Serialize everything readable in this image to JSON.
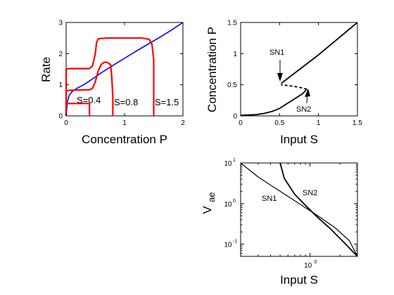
{
  "chart_data": [
    {
      "type": "line",
      "xlabel": "Concentration P",
      "ylabel": "Rate",
      "xlim": [
        0,
        2
      ],
      "ylim": [
        0,
        3
      ],
      "xticks": [
        "0",
        "1",
        "2"
      ],
      "yticks": [
        "0",
        "1",
        "2",
        "3"
      ],
      "grid": false,
      "annotations": [
        "S=0.4",
        "S=0.8",
        "S=1.5"
      ],
      "series": [
        {
          "color": "#0000ff",
          "x": [
            0,
            0.02,
            0.05,
            0.1,
            0.2,
            0.3,
            0.4,
            0.5,
            0.6,
            0.8,
            1.0,
            1.2,
            1.4,
            1.6,
            1.8,
            2.0
          ],
          "y": [
            0,
            0.45,
            0.65,
            0.78,
            0.9,
            1.0,
            1.12,
            1.25,
            1.38,
            1.62,
            1.85,
            2.08,
            2.3,
            2.52,
            2.75,
            3.0
          ]
        },
        {
          "color": "#ff0000",
          "x": [
            0,
            0.0,
            0.03,
            0.3,
            0.38,
            0.4,
            0.4
          ],
          "y": [
            0,
            0.4,
            0.4,
            0.4,
            0.4,
            0.38,
            0
          ]
        },
        {
          "color": "#ff0000",
          "x": [
            0,
            0.0,
            0.05,
            0.4,
            0.45,
            0.5,
            0.55,
            0.6,
            0.65,
            0.7,
            0.76,
            0.78,
            0.8,
            0.8
          ],
          "y": [
            0,
            0.8,
            0.82,
            0.84,
            0.88,
            1.1,
            1.45,
            1.65,
            1.72,
            1.72,
            1.65,
            1.3,
            0.6,
            0
          ]
        },
        {
          "color": "#ff0000",
          "x": [
            0,
            0.0,
            0.05,
            0.3,
            0.4,
            0.45,
            0.5,
            0.52,
            0.55,
            0.7,
            1.3,
            1.42,
            1.47,
            1.5,
            1.5
          ],
          "y": [
            0,
            1.5,
            1.52,
            1.52,
            1.52,
            1.6,
            2.0,
            2.35,
            2.48,
            2.5,
            2.5,
            2.46,
            2.3,
            1.8,
            0
          ]
        }
      ]
    },
    {
      "type": "line",
      "xlabel": "Input S",
      "ylabel": "Concentration P",
      "xlim": [
        0,
        1.5
      ],
      "ylim": [
        0,
        1.5
      ],
      "xticks": [
        "0",
        "0.5",
        "1",
        "1.5"
      ],
      "yticks": [
        "0",
        "0.5",
        "1",
        "1.5"
      ],
      "grid": false,
      "annotations": [
        "SN1",
        "SN2"
      ],
      "series": [
        {
          "style": "solid",
          "color": "#000000",
          "x": [
            0,
            0.2,
            0.3,
            0.4,
            0.5,
            0.6,
            0.7,
            0.8,
            0.85
          ],
          "y": [
            0.01,
            0.02,
            0.04,
            0.07,
            0.12,
            0.2,
            0.28,
            0.36,
            0.43
          ]
        },
        {
          "style": "dashed",
          "color": "#000000",
          "x": [
            0.85,
            0.75,
            0.65,
            0.52
          ],
          "y": [
            0.43,
            0.46,
            0.48,
            0.5
          ]
        },
        {
          "style": "solid",
          "color": "#000000",
          "x": [
            0.52,
            1.0,
            1.5
          ],
          "y": [
            0.52,
            0.98,
            1.5
          ]
        }
      ]
    },
    {
      "type": "line",
      "xlabel": "Input S",
      "ylabel": "V",
      "ylabel_subscript": "ae",
      "xscale": "log",
      "yscale": "log",
      "xlim": [
        0.2,
        3
      ],
      "ylim": [
        0.05,
        10
      ],
      "xticks_major": [
        "10",
        "0"
      ],
      "yticks_major": [
        {
          "base": "10",
          "exp": "1"
        },
        {
          "base": "10",
          "exp": "0"
        },
        {
          "base": "10",
          "exp": "-1"
        }
      ],
      "grid": false,
      "annotations": [
        "SN1",
        "SN2"
      ],
      "series": [
        {
          "name": "SN1",
          "color": "#000000",
          "x": [
            0.2,
            0.3,
            0.5,
            0.8,
            1.2,
            1.8,
            2.5,
            3.0
          ],
          "y": [
            10,
            4.5,
            2.0,
            0.95,
            0.5,
            0.25,
            0.12,
            0.05
          ]
        },
        {
          "name": "SN2",
          "color": "#000000",
          "x": [
            0.5,
            0.55,
            0.7,
            0.9,
            1.2,
            1.6,
            2.2,
            3.0
          ],
          "y": [
            10,
            4.2,
            1.7,
            0.9,
            0.45,
            0.24,
            0.11,
            0.05
          ]
        }
      ]
    }
  ]
}
